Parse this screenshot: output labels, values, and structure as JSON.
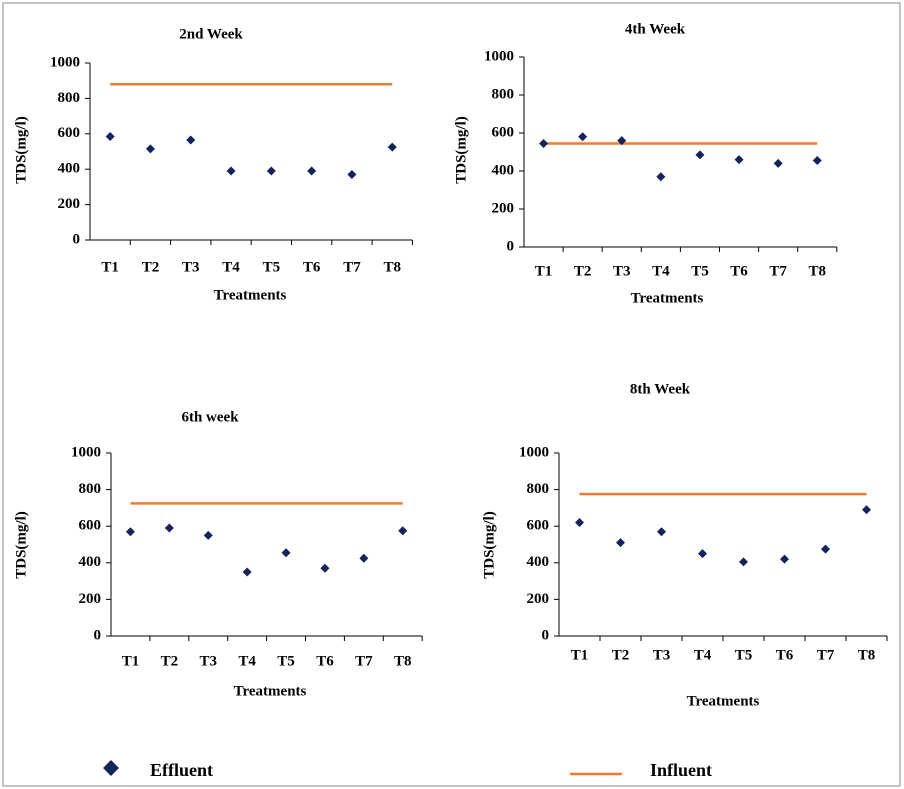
{
  "legend": [
    {
      "name": "Effluent",
      "color": "#13235b",
      "marker": "diamond"
    },
    {
      "name": "Influent",
      "color": "#ed7d31",
      "marker": "line"
    }
  ],
  "chart_data": [
    {
      "type": "scatter-line",
      "title": "2nd Week",
      "x_label": "Treatments",
      "y_label": "TDS(mg/l)",
      "categories": [
        "T1",
        "T2",
        "T3",
        "T4",
        "T5",
        "T6",
        "T7",
        "T8"
      ],
      "series": [
        {
          "values": [
            585,
            515,
            565,
            390,
            390,
            390,
            370,
            525
          ]
        },
        {
          "values": [
            880,
            880,
            880,
            880,
            880,
            880,
            880,
            880
          ]
        }
      ],
      "ylim": [
        0,
        1000
      ],
      "yticks": [
        0,
        200,
        400,
        600,
        800,
        1000
      ]
    },
    {
      "type": "scatter-line",
      "title": "4th Week",
      "x_label": "Treatments",
      "y_label": "TDS(mg/l)",
      "categories": [
        "T1",
        "T2",
        "T3",
        "T4",
        "T5",
        "T6",
        "T7",
        "T8"
      ],
      "series": [
        {
          "values": [
            545,
            580,
            560,
            370,
            485,
            460,
            440,
            455
          ]
        },
        {
          "values": [
            545,
            545,
            545,
            545,
            545,
            545,
            545,
            545
          ]
        }
      ],
      "ylim": [
        0,
        1000
      ],
      "yticks": [
        0,
        200,
        400,
        600,
        800,
        1000
      ]
    },
    {
      "type": "scatter-line",
      "title": "6th week",
      "x_label": "Treatments",
      "y_label": "TDS(mg/l)",
      "categories": [
        "T1",
        "T2",
        "T3",
        "T4",
        "T5",
        "T6",
        "T7",
        "T8"
      ],
      "series": [
        {
          "values": [
            570,
            590,
            550,
            350,
            455,
            370,
            425,
            575
          ]
        },
        {
          "values": [
            725,
            725,
            725,
            725,
            725,
            725,
            725,
            725
          ]
        }
      ],
      "ylim": [
        0,
        1000
      ],
      "yticks": [
        0,
        200,
        400,
        600,
        800,
        1000
      ]
    },
    {
      "type": "scatter-line",
      "title": "8th Week",
      "x_label": "Treatments",
      "y_label": "TDS(mg/l)",
      "categories": [
        "T1",
        "T2",
        "T3",
        "T4",
        "T5",
        "T6",
        "T7",
        "T8"
      ],
      "series": [
        {
          "values": [
            620,
            510,
            570,
            450,
            405,
            420,
            475,
            690
          ]
        },
        {
          "values": [
            775,
            775,
            775,
            775,
            775,
            775,
            775,
            775
          ]
        }
      ],
      "ylim": [
        0,
        1000
      ],
      "yticks": [
        0,
        200,
        400,
        600,
        800,
        1000
      ]
    }
  ]
}
